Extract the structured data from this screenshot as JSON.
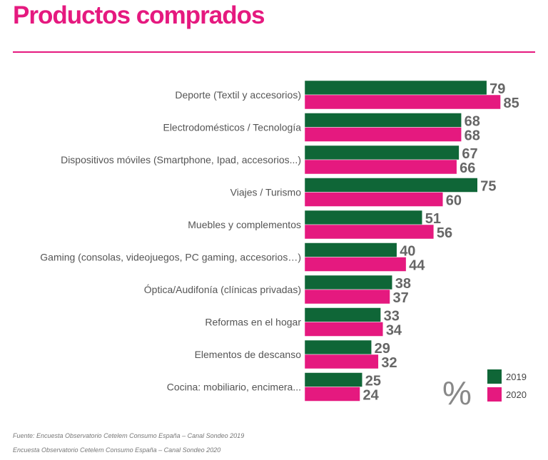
{
  "chart_data": {
    "type": "bar",
    "orientation": "horizontal",
    "title": "Productos comprados",
    "unit_label": "%",
    "categories": [
      "Deporte (Textil y accesorios)",
      "Electrodomésticos / Tecnología",
      "Dispositivos móviles (Smartphone, Ipad, accesorios...)",
      "Viajes / Turismo",
      "Muebles y complementos",
      "Gaming (consolas, videojuegos, PC gaming, accesorios…)",
      "Óptica/Audifonía (clínicas privadas)",
      "Reformas en el hogar",
      "Elementos de descanso",
      "Cocina: mobiliario, encimera..."
    ],
    "series": [
      {
        "name": "2019",
        "color": "#0f6637",
        "values": [
          79,
          68,
          67,
          75,
          51,
          40,
          38,
          33,
          29,
          25
        ]
      },
      {
        "name": "2020",
        "color": "#e5197f",
        "values": [
          85,
          68,
          66,
          60,
          56,
          44,
          37,
          34,
          32,
          24
        ]
      }
    ],
    "legend_position": "bottom-right",
    "grid": false
  },
  "sources": [
    "Fuente: Encuesta Observatorio Cetelem Consumo España – Canal Sondeo 2019",
    "Encuesta Observatorio Cetelem Consumo España – Canal Sondeo 2020"
  ]
}
